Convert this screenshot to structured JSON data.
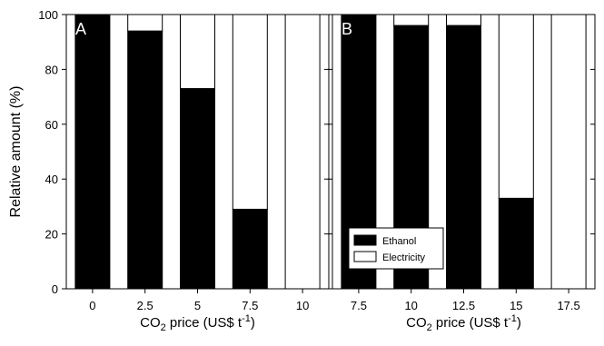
{
  "y_axis": {
    "label": "Relative amount (%)",
    "ticks": [
      "0",
      "20",
      "40",
      "60",
      "80",
      "100"
    ]
  },
  "legend": {
    "items": [
      {
        "label": "Ethanol",
        "color": "#000000"
      },
      {
        "label": "Electricity",
        "color": "#ffffff"
      }
    ],
    "placement": "bottom-left of panel B"
  },
  "chart_data": [
    {
      "type": "bar",
      "stacked": true,
      "panel_label": "A",
      "xlabel": "CO2 price (US$ t-1)",
      "xlabel_parts": {
        "pre": "CO",
        "sub": "2",
        "mid": " price (US$ t",
        "sup": "-1",
        "post": ")"
      },
      "ylabel": "Relative amount (%)",
      "ylim": [
        0,
        100
      ],
      "grid": false,
      "categories": [
        "0",
        "2.5",
        "5",
        "7.5",
        "10"
      ],
      "series": [
        {
          "name": "Ethanol",
          "color": "#000000",
          "values": [
            100,
            94,
            73,
            29,
            0
          ]
        },
        {
          "name": "Electricity",
          "color": "#ffffff",
          "values": [
            0,
            6,
            27,
            71,
            100
          ]
        }
      ]
    },
    {
      "type": "bar",
      "stacked": true,
      "panel_label": "B",
      "xlabel": "CO2 price (US$ t-1)",
      "xlabel_parts": {
        "pre": "CO",
        "sub": "2",
        "mid": " price (US$ t",
        "sup": "-1",
        "post": ")"
      },
      "ylabel": "Relative amount (%)",
      "ylim": [
        0,
        100
      ],
      "grid": false,
      "categories": [
        "7.5",
        "10",
        "12.5",
        "15",
        "17.5"
      ],
      "series": [
        {
          "name": "Ethanol",
          "color": "#000000",
          "values": [
            100,
            96,
            96,
            33,
            0
          ]
        },
        {
          "name": "Electricity",
          "color": "#ffffff",
          "values": [
            0,
            4,
            4,
            67,
            100
          ]
        }
      ]
    }
  ]
}
